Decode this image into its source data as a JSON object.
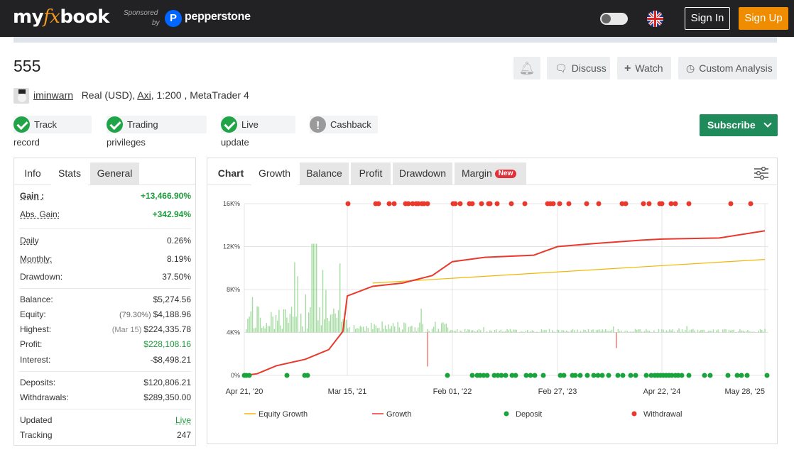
{
  "header": {
    "logo_left": "my",
    "logo_fx": "fx",
    "logo_right": "book",
    "sponsored": "Sponsored",
    "sponsored_by": "by",
    "sponsor_name": "pepperstone",
    "signin": "Sign In",
    "signup": "Sign Up"
  },
  "account": {
    "title": "555",
    "username": "iminwarn",
    "type": "Real (USD),",
    "broker": "Axi",
    "details": ", 1:200 , MetaTrader 4"
  },
  "actions": {
    "discuss": "Discuss",
    "watch": "Watch",
    "custom": "Custom Analysis"
  },
  "badges": [
    "Track record",
    "Trading privileges",
    "Live update",
    "Cashback"
  ],
  "subscribe": "Subscribe",
  "left_tabs": [
    "Info",
    "Stats",
    "General"
  ],
  "stats": {
    "gain_k": "Gain :",
    "gain_v": "+13,466.90%",
    "absgain_k": "Abs. Gain:",
    "absgain_v": "+342.94%",
    "daily_k": "Daily",
    "daily_v": "0.26%",
    "monthly_k": "Monthly:",
    "monthly_v": "8.19%",
    "drawdown_k": "Drawdown:",
    "drawdown_v": "37.50%",
    "balance_k": "Balance:",
    "balance_v": "$5,274.56",
    "equity_k": "Equity:",
    "equity_sub": "(79.30%)",
    "equity_v": "$4,188.96",
    "highest_k": "Highest:",
    "highest_sub": "(Mar 15)",
    "highest_v": "$224,335.78",
    "profit_k": "Profit:",
    "profit_v": "$228,108.16",
    "interest_k": "Interest:",
    "interest_v": "-$8,498.21",
    "deposits_k": "Deposits:",
    "deposits_v": "$120,806.21",
    "withdrawals_k": "Withdrawals:",
    "withdrawals_v": "$289,350.00",
    "updated_k": "Updated",
    "updated_v": "Live",
    "tracking_k": "Tracking",
    "tracking_v": "247"
  },
  "chart_tabs": {
    "chart": "Chart",
    "growth": "Growth",
    "balance": "Balance",
    "profit": "Profit",
    "drawdown": "Drawdown",
    "margin": "Margin",
    "new": "New"
  },
  "colors": {
    "growth": "#e8392c",
    "equity_growth": "#f2b705",
    "deposit": "#1aa33c",
    "withdrawal": "#e8392c",
    "volume": "#8fd38a"
  },
  "chart_data": {
    "type": "line",
    "title": "",
    "x_ticks": [
      "Apr 21, '20",
      "Mar 15, '21",
      "Feb 01, '22",
      "Feb 27, '23",
      "Apr 22, '24",
      "May 28, '25"
    ],
    "y_ticks": [
      "0%",
      "4K%",
      "8K%",
      "12K%",
      "16K%"
    ],
    "ylim": [
      0,
      16000
    ],
    "legend": [
      "Equity Growth",
      "Growth",
      "Deposit",
      "Withdrawal"
    ],
    "series": [
      {
        "name": "Growth",
        "x": [
          "Apr 21, '20",
          "Jun 01, '20",
          "Aug 01, '20",
          "Nov 01, '20",
          "Jan 15, '21",
          "Mar 01, '21",
          "Mar 15, '21",
          "Jun 01, '21",
          "Sep 01, '21",
          "Dec 01, '21",
          "Feb 01, '22",
          "Jun 01, '22",
          "Dec 01, '22",
          "Feb 27, '23",
          "Aug 01, '23",
          "Feb 01, '24",
          "Apr 22, '24",
          "Dec 01, '24",
          "May 28, '25"
        ],
        "values": [
          0,
          150,
          900,
          1500,
          2400,
          4100,
          7400,
          8300,
          8600,
          9300,
          10600,
          11000,
          11200,
          12000,
          12300,
          12600,
          12700,
          12800,
          13467
        ]
      },
      {
        "name": "Equity Growth",
        "x": [
          "Jun 01, '21",
          "May 28, '25"
        ],
        "values": [
          8600,
          10800
        ]
      }
    ]
  }
}
